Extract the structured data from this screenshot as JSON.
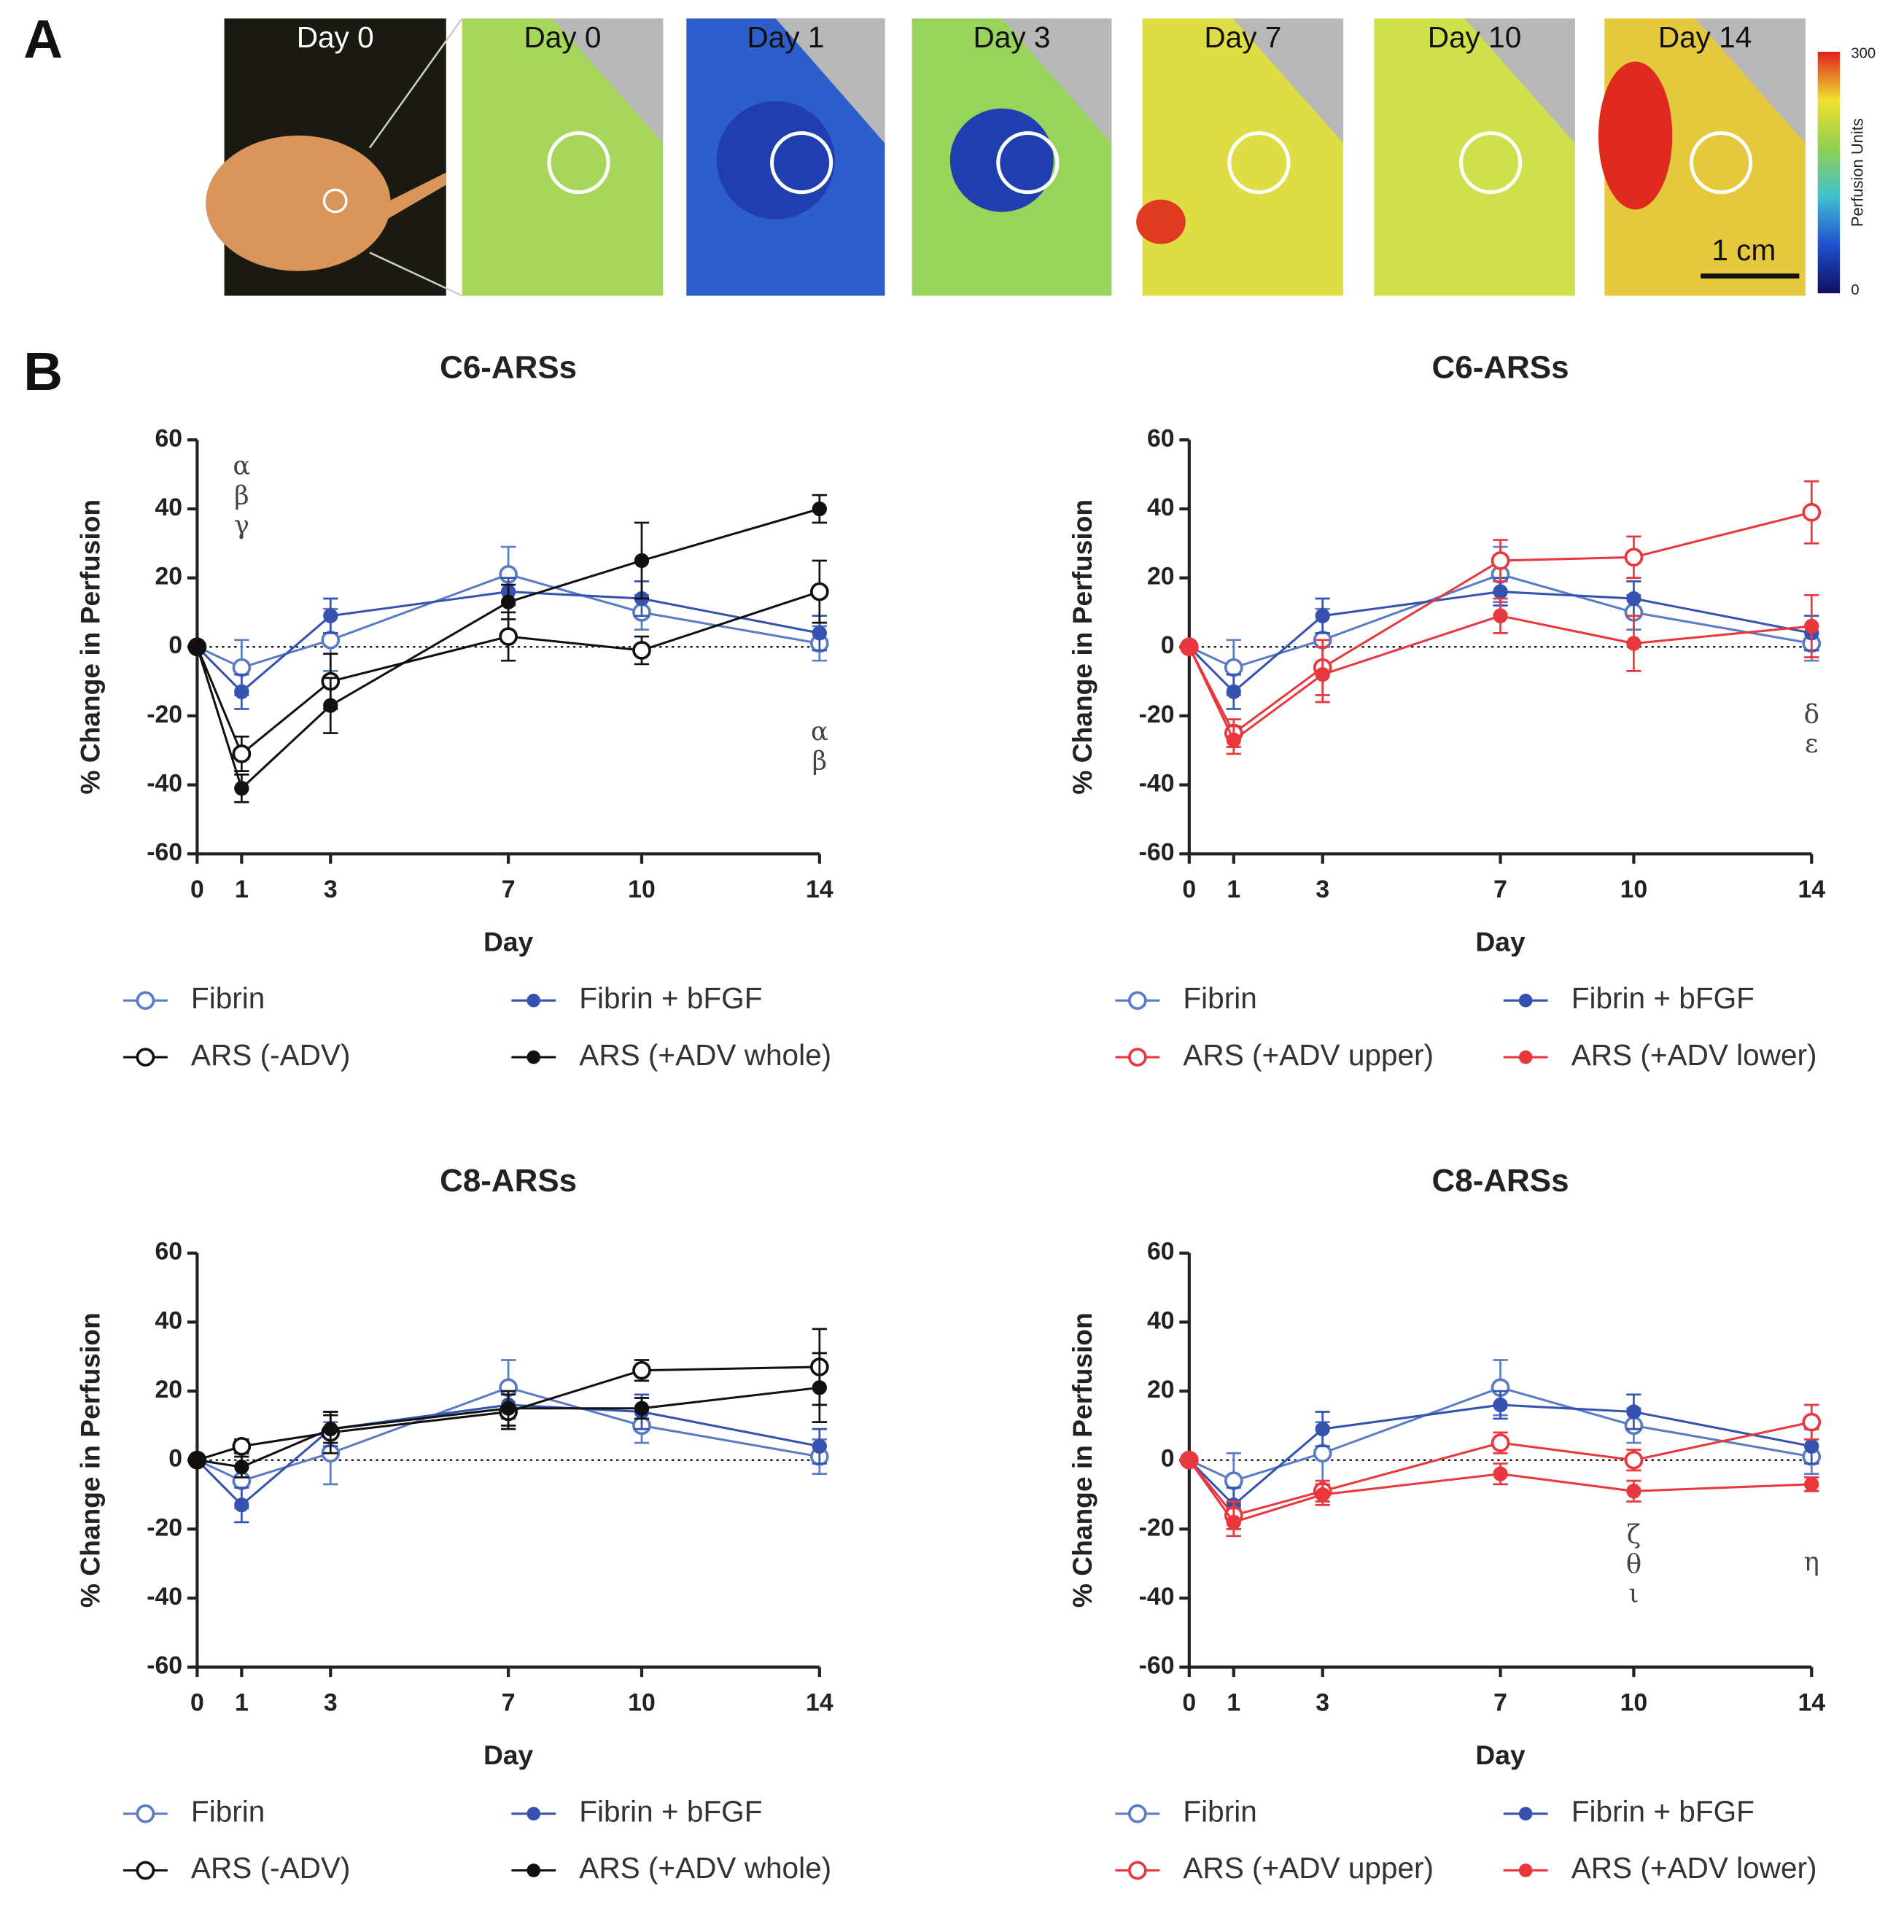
{
  "panel_a": {
    "label": "A",
    "images": [
      "Day 0",
      "Day 0",
      "Day 1",
      "Day 3",
      "Day 7",
      "Day 10",
      "Day 14"
    ],
    "colorbar": {
      "max": 300,
      "min": 0,
      "label": "Perfusion Units"
    },
    "scale_bar": "1 cm"
  },
  "panel_b": {
    "label": "B"
  },
  "chart_data": [
    {
      "type": "line",
      "title": "C6-ARSs",
      "xlabel": "Day",
      "ylabel": "% Change in Perfusion",
      "x": [
        0,
        1,
        3,
        7,
        10,
        14
      ],
      "xlim": [
        0,
        14
      ],
      "xticks": [
        0,
        1,
        3,
        7,
        10,
        14
      ],
      "ylim": [
        -60,
        60
      ],
      "yticks": [
        -60,
        -40,
        -20,
        0,
        20,
        40,
        60
      ],
      "hline": 0,
      "series": [
        {
          "name": "Fibrin",
          "color": "#5a7cc4",
          "marker": "open",
          "values": [
            0,
            -6,
            2,
            21,
            10,
            1
          ],
          "errors": [
            0,
            8,
            9,
            8,
            5,
            5
          ]
        },
        {
          "name": "Fibrin + bFGF",
          "color": "#3552b0",
          "marker": "filled",
          "values": [
            0,
            -13,
            9,
            16,
            14,
            4
          ],
          "errors": [
            0,
            5,
            5,
            4,
            5,
            5
          ]
        },
        {
          "name": "ARS (-ADV)",
          "color": "#111111",
          "marker": "open",
          "values": [
            0,
            -31,
            -10,
            3,
            -1,
            16
          ],
          "errors": [
            0,
            5,
            8,
            7,
            4,
            9
          ]
        },
        {
          "name": "ARS (+ADV whole)",
          "color": "#111111",
          "marker": "filled",
          "values": [
            0,
            -41,
            -17,
            13,
            25,
            40
          ],
          "errors": [
            0,
            4,
            8,
            5,
            11,
            4
          ]
        }
      ],
      "annotations": [
        {
          "x": 1,
          "y": 52,
          "lines": [
            "α",
            "β",
            "γ"
          ]
        },
        {
          "x": 14,
          "y": -25,
          "lines": [
            "α",
            "β"
          ]
        }
      ]
    },
    {
      "type": "line",
      "title": "C6-ARSs",
      "xlabel": "Day",
      "ylabel": "% Change in Perfusion",
      "x": [
        0,
        1,
        3,
        7,
        10,
        14
      ],
      "xlim": [
        0,
        14
      ],
      "xticks": [
        0,
        1,
        3,
        7,
        10,
        14
      ],
      "ylim": [
        -60,
        60
      ],
      "yticks": [
        -60,
        -40,
        -20,
        0,
        20,
        40,
        60
      ],
      "hline": 0,
      "series": [
        {
          "name": "Fibrin",
          "color": "#5a7cc4",
          "marker": "open",
          "values": [
            0,
            -6,
            2,
            21,
            10,
            1
          ],
          "errors": [
            0,
            8,
            9,
            8,
            5,
            5
          ]
        },
        {
          "name": "Fibrin + bFGF",
          "color": "#3552b0",
          "marker": "filled",
          "values": [
            0,
            -13,
            9,
            16,
            14,
            4
          ],
          "errors": [
            0,
            5,
            5,
            4,
            5,
            5
          ]
        },
        {
          "name": "ARS (+ADV upper)",
          "color": "#e8383d",
          "marker": "open",
          "values": [
            0,
            -25,
            -6,
            25,
            26,
            39
          ],
          "errors": [
            0,
            4,
            8,
            6,
            6,
            9
          ]
        },
        {
          "name": "ARS (+ADV lower)",
          "color": "#e8383d",
          "marker": "filled",
          "values": [
            0,
            -27,
            -8,
            9,
            1,
            6
          ],
          "errors": [
            0,
            4,
            8,
            5,
            8,
            9
          ]
        }
      ],
      "annotations": [
        {
          "x": 14,
          "y": -20,
          "lines": [
            "δ",
            "ε"
          ]
        }
      ]
    },
    {
      "type": "line",
      "title": "C8-ARSs",
      "xlabel": "Day",
      "ylabel": "% Change in Perfusion",
      "x": [
        0,
        1,
        3,
        7,
        10,
        14
      ],
      "xlim": [
        0,
        14
      ],
      "xticks": [
        0,
        1,
        3,
        7,
        10,
        14
      ],
      "ylim": [
        -60,
        60
      ],
      "yticks": [
        -60,
        -40,
        -20,
        0,
        20,
        40,
        60
      ],
      "hline": 0,
      "series": [
        {
          "name": "Fibrin",
          "color": "#5a7cc4",
          "marker": "open",
          "values": [
            0,
            -6,
            2,
            21,
            10,
            1
          ],
          "errors": [
            0,
            8,
            9,
            8,
            5,
            5
          ]
        },
        {
          "name": "Fibrin + bFGF",
          "color": "#3552b0",
          "marker": "filled",
          "values": [
            0,
            -13,
            9,
            16,
            14,
            4
          ],
          "errors": [
            0,
            5,
            5,
            4,
            5,
            5
          ]
        },
        {
          "name": "ARS (-ADV)",
          "color": "#111111",
          "marker": "open",
          "values": [
            0,
            4,
            8,
            14,
            26,
            27
          ],
          "errors": [
            0,
            2,
            6,
            5,
            3,
            11
          ]
        },
        {
          "name": "ARS (+ADV whole)",
          "color": "#111111",
          "marker": "filled",
          "values": [
            0,
            -2,
            9,
            15,
            15,
            21
          ],
          "errors": [
            0,
            3,
            4,
            5,
            3,
            10
          ]
        }
      ],
      "annotations": []
    },
    {
      "type": "line",
      "title": "C8-ARSs",
      "xlabel": "Day",
      "ylabel": "% Change in Perfusion",
      "x": [
        0,
        1,
        3,
        7,
        10,
        14
      ],
      "xlim": [
        0,
        14
      ],
      "xticks": [
        0,
        1,
        3,
        7,
        10,
        14
      ],
      "ylim": [
        -60,
        60
      ],
      "yticks": [
        -60,
        -40,
        -20,
        0,
        20,
        40,
        60
      ],
      "hline": 0,
      "series": [
        {
          "name": "Fibrin",
          "color": "#5a7cc4",
          "marker": "open",
          "values": [
            0,
            -6,
            2,
            21,
            10,
            1
          ],
          "errors": [
            0,
            8,
            9,
            8,
            5,
            5
          ]
        },
        {
          "name": "Fibrin + bFGF",
          "color": "#3552b0",
          "marker": "filled",
          "values": [
            0,
            -13,
            9,
            16,
            14,
            4
          ],
          "errors": [
            0,
            5,
            5,
            4,
            5,
            5
          ]
        },
        {
          "name": "ARS (+ADV upper)",
          "color": "#e8383d",
          "marker": "open",
          "values": [
            0,
            -16,
            -9,
            5,
            0,
            11
          ],
          "errors": [
            0,
            4,
            3,
            3,
            3,
            5
          ]
        },
        {
          "name": "ARS (+ADV lower)",
          "color": "#e8383d",
          "marker": "filled",
          "values": [
            0,
            -18,
            -10,
            -4,
            -9,
            -7
          ],
          "errors": [
            0,
            4,
            3,
            3,
            3,
            2
          ]
        }
      ],
      "annotations": [
        {
          "x": 10,
          "y": -22,
          "lines": [
            "ζ",
            "θ",
            "ι"
          ]
        },
        {
          "x": 14,
          "y": -30,
          "lines": [
            "η"
          ]
        }
      ]
    }
  ]
}
